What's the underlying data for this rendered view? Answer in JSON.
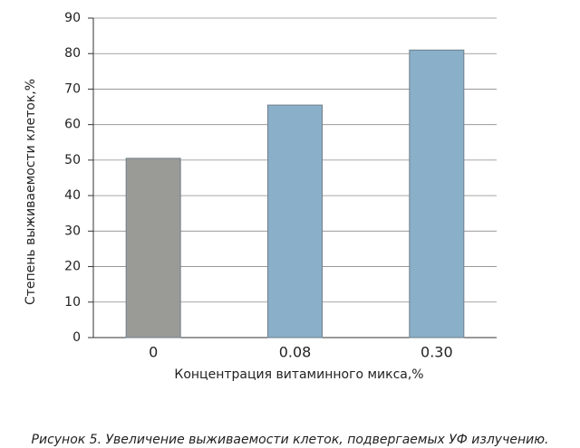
{
  "chart_data": {
    "type": "bar",
    "categories": [
      "0",
      "0.08",
      "0.30"
    ],
    "values": [
      50.5,
      65.5,
      81
    ],
    "colors": [
      "#9a9a97",
      "#8aafc9",
      "#8aafc9"
    ],
    "xlabel": "Концентрация витаминного микса,%",
    "ylabel": "Степень выживаемости клеток,%",
    "ylim": [
      0,
      90
    ],
    "yticks": [
      0,
      10,
      20,
      30,
      40,
      50,
      60,
      70,
      80,
      90
    ],
    "grid": true,
    "caption": "Рисунок 5. Увеличение выживаемости клеток, подвергаемых УФ излучению."
  }
}
